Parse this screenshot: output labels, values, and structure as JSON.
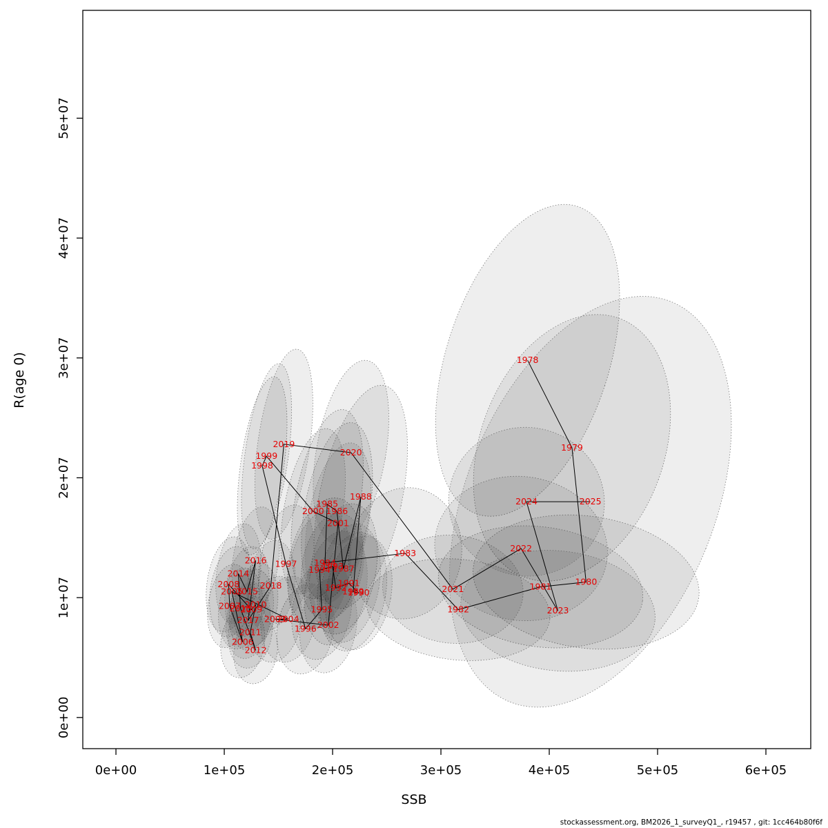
{
  "page": {
    "background": "#ffffff"
  },
  "footer": {
    "text": "stockassessment.org, BM2026_1_surveyQ1_, r19457 , git: 1cc464b80f6f"
  },
  "chart_data": {
    "type": "scatter",
    "title": "",
    "xlabel": "SSB",
    "ylabel": "R(age 0)",
    "xlim": [
      -30600,
      641400
    ],
    "ylim": [
      -2600000,
      59000000
    ],
    "grid": false,
    "legend": "none",
    "x_ticks": [
      {
        "value": 0,
        "label": "0e+00"
      },
      {
        "value": 100000,
        "label": "1e+05"
      },
      {
        "value": 200000,
        "label": "2e+05"
      },
      {
        "value": 300000,
        "label": "3e+05"
      },
      {
        "value": 400000,
        "label": "4e+05"
      },
      {
        "value": 500000,
        "label": "5e+05"
      },
      {
        "value": 600000,
        "label": "6e+05"
      }
    ],
    "y_ticks": [
      {
        "value": 0,
        "label": "0e+00"
      },
      {
        "value": 10000000,
        "label": "1e+07"
      },
      {
        "value": 20000000,
        "label": "2e+07"
      },
      {
        "value": 30000000,
        "label": "3e+07"
      },
      {
        "value": 40000000,
        "label": "4e+07"
      },
      {
        "value": 50000000,
        "label": "5e+07"
      }
    ],
    "point_label_color": "#e60000",
    "line_color": "#000000",
    "ellipse_fill": "#000000",
    "ellipse_fill_opacity": 0.065,
    "ellipse_stroke": "#7a7a7a",
    "points_format": [
      "year",
      "ssb",
      "recruitment",
      "ellipse_rx",
      "ellipse_ry",
      "ellipse_rotation_deg"
    ],
    "points": [
      [
        1978,
        380000,
        29800000,
        75000,
        13500000,
        18
      ],
      [
        1979,
        421000,
        22500000,
        85000,
        11500000,
        20
      ],
      [
        1980,
        434000,
        11300000,
        105000,
        5500000,
        8
      ],
      [
        1981,
        392000,
        10900000,
        95000,
        5000000,
        8
      ],
      [
        1982,
        316000,
        9000000,
        85000,
        4200000,
        6
      ],
      [
        1983,
        267000,
        13700000,
        52000,
        5500000,
        10
      ],
      [
        1984,
        193000,
        12900000,
        33000,
        5500000,
        12
      ],
      [
        1985,
        195000,
        17800000,
        30000,
        8000000,
        10
      ],
      [
        1986,
        204000,
        17200000,
        30000,
        7500000,
        10
      ],
      [
        1987,
        210000,
        12400000,
        30000,
        5500000,
        10
      ],
      [
        1988,
        226000,
        18400000,
        38000,
        9500000,
        12
      ],
      [
        1989,
        219000,
        10500000,
        30000,
        5000000,
        10
      ],
      [
        1990,
        224000,
        10400000,
        30000,
        4800000,
        10
      ],
      [
        1991,
        215000,
        11200000,
        28000,
        5000000,
        10
      ],
      [
        1992,
        203000,
        10800000,
        28000,
        4800000,
        10
      ],
      [
        1993,
        200000,
        12600000,
        28000,
        4500000,
        10
      ],
      [
        1994,
        188000,
        12300000,
        28000,
        5000000,
        10
      ],
      [
        1995,
        190000,
        9000000,
        27000,
        4200000,
        10
      ],
      [
        1996,
        175000,
        7400000,
        26000,
        3800000,
        10
      ],
      [
        1997,
        157000,
        12800000,
        24000,
        5000000,
        10
      ],
      [
        1998,
        135000,
        21000000,
        20000,
        7500000,
        8
      ],
      [
        1999,
        139000,
        21800000,
        20000,
        7800000,
        8
      ],
      [
        2000,
        182000,
        17200000,
        27000,
        7000000,
        10
      ],
      [
        2001,
        205000,
        16200000,
        28000,
        6800000,
        10
      ],
      [
        2002,
        196000,
        7700000,
        26000,
        4000000,
        8
      ],
      [
        2003,
        147000,
        8200000,
        24000,
        3600000,
        8
      ],
      [
        2004,
        159000,
        8200000,
        25000,
        3600000,
        8
      ],
      [
        2005,
        107000,
        10500000,
        20000,
        3800000,
        8
      ],
      [
        2006,
        117000,
        6300000,
        20000,
        3000000,
        8
      ],
      [
        2007,
        105000,
        9300000,
        20000,
        3500000,
        8
      ],
      [
        2008,
        104000,
        11100000,
        20000,
        4000000,
        8
      ],
      [
        2009,
        125000,
        9000000,
        20000,
        3400000,
        8
      ],
      [
        2010,
        129000,
        9400000,
        20000,
        3500000,
        8
      ],
      [
        2011,
        124000,
        7100000,
        20000,
        3000000,
        8
      ],
      [
        2012,
        129000,
        5600000,
        20000,
        2800000,
        8
      ],
      [
        2013,
        115000,
        9100000,
        20000,
        3400000,
        8
      ],
      [
        2014,
        113000,
        12000000,
        20000,
        4200000,
        8
      ],
      [
        2015,
        121000,
        10500000,
        20000,
        3800000,
        8
      ],
      [
        2016,
        129000,
        13100000,
        21000,
        4500000,
        8
      ],
      [
        2017,
        122000,
        8100000,
        20000,
        3200000,
        8
      ],
      [
        2018,
        143000,
        11000000,
        22000,
        3800000,
        8
      ],
      [
        2019,
        155000,
        22800000,
        24000,
        8000000,
        8
      ],
      [
        2020,
        217000,
        22100000,
        32000,
        7800000,
        10
      ],
      [
        2021,
        311000,
        10700000,
        65000,
        4500000,
        6
      ],
      [
        2022,
        374000,
        14100000,
        80000,
        6000000,
        8
      ],
      [
        2023,
        408000,
        8900000,
        90000,
        5000000,
        6
      ],
      [
        2024,
        379000,
        18000000,
        72000,
        6200000,
        10
      ],
      [
        2025,
        438000,
        18000000,
        115000,
        18000000,
        22
      ]
    ]
  }
}
